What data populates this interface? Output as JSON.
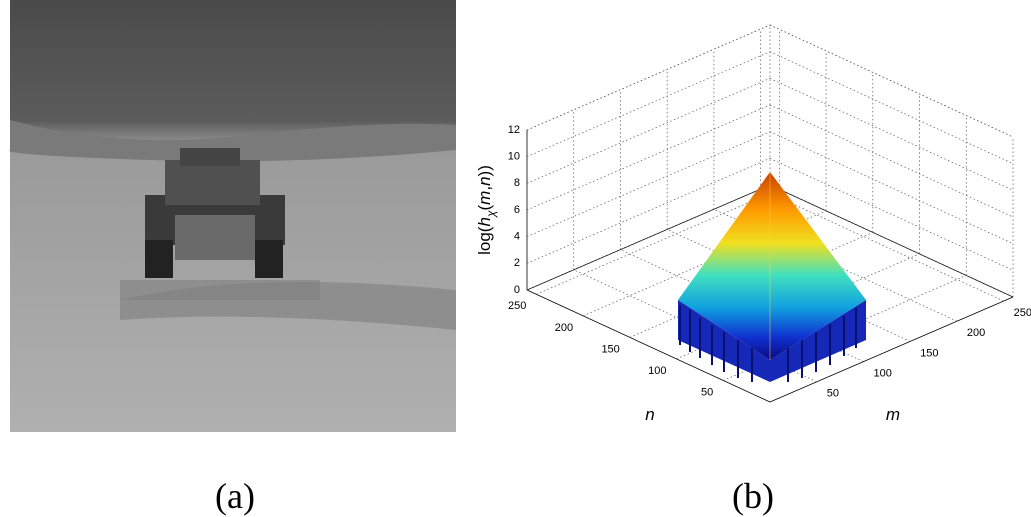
{
  "panels": [
    {
      "caption": "(a)"
    },
    {
      "caption": "(b)",
      "plot": {
        "z_label": {
          "pre": "log(",
          "h": "h",
          "sub": "χ",
          "mid": "(",
          "m": "m",
          "comma": ",",
          "n": "n",
          "post": "))"
        },
        "z_ticks": [
          0,
          2,
          4,
          6,
          8,
          10,
          12
        ],
        "n_ticks": [
          50,
          100,
          150,
          200,
          250
        ],
        "m_ticks": [
          50,
          100,
          150,
          200,
          250
        ],
        "n_label": "n",
        "m_label": "m"
      }
    }
  ]
}
